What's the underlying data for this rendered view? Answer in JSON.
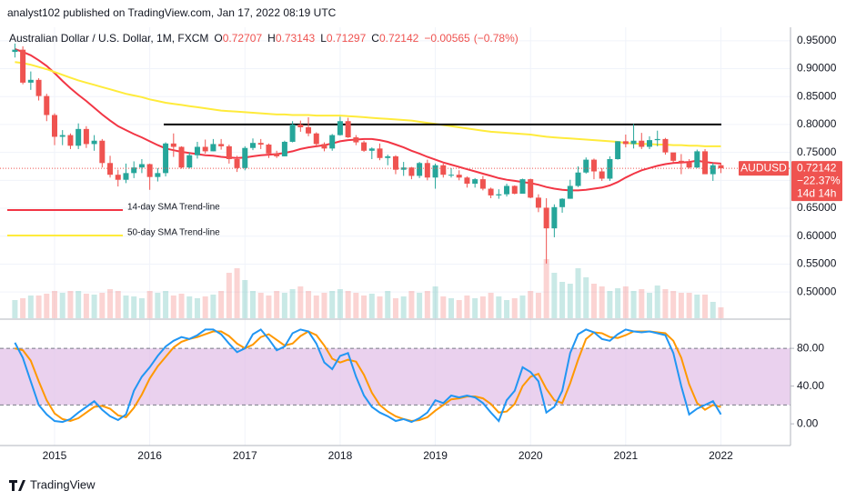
{
  "header": {
    "publisher": "analyst102 published on TradingView.com, Jan 17, 2022 08:19 UTC",
    "logo": "TradingView"
  },
  "chart_data": [
    {
      "type": "candlestick",
      "title": "Australian Dollar / U.S. Dollar, 1M, FXCM",
      "ohlc_legend": [
        {
          "label": "O",
          "value": 0.72707
        },
        {
          "label": "H",
          "value": 0.73143
        },
        {
          "label": "L",
          "value": 0.71297
        },
        {
          "label": "C",
          "value": 0.72142
        }
      ],
      "change": {
        "value": -0.00565,
        "label": "−0.00565"
      },
      "change_percent": {
        "value": -0.78,
        "label": "(−0.78%)"
      },
      "up_color": "#26a69a",
      "down_color": "#ef5350",
      "categories": [
        null,
        null,
        null,
        null,
        null,
        "2015",
        null,
        null,
        null,
        null,
        null,
        null,
        null,
        null,
        null,
        null,
        null,
        "2016",
        null,
        null,
        null,
        null,
        null,
        null,
        null,
        null,
        null,
        null,
        null,
        "2017",
        null,
        null,
        null,
        null,
        null,
        null,
        null,
        null,
        null,
        null,
        null,
        "2018",
        null,
        null,
        null,
        null,
        null,
        null,
        null,
        null,
        null,
        null,
        null,
        "2019",
        null,
        null,
        null,
        null,
        null,
        null,
        null,
        null,
        null,
        null,
        null,
        "2020",
        null,
        null,
        null,
        null,
        null,
        null,
        null,
        null,
        null,
        null,
        null,
        "2021",
        null,
        null,
        null,
        null,
        null,
        null,
        null,
        null,
        null,
        null,
        null,
        "2022"
      ],
      "open": [
        0.93,
        0.934,
        0.875,
        0.88,
        0.851,
        0.817,
        0.778,
        0.781,
        0.762,
        0.792,
        0.765,
        0.771,
        0.731,
        0.71,
        0.701,
        0.713,
        0.723,
        0.729,
        0.706,
        0.713,
        0.766,
        0.76,
        0.723,
        0.745,
        0.76,
        0.752,
        0.765,
        0.761,
        0.738,
        0.722,
        0.758,
        0.767,
        0.764,
        0.748,
        0.743,
        0.769,
        0.8,
        0.795,
        0.784,
        0.765,
        0.757,
        0.781,
        0.806,
        0.777,
        0.768,
        0.753,
        0.757,
        0.74,
        0.743,
        0.719,
        0.723,
        0.708,
        0.731,
        0.705,
        0.727,
        0.71,
        0.71,
        0.705,
        0.694,
        0.702,
        0.685,
        0.673,
        0.675,
        0.69,
        0.676,
        0.702,
        0.669,
        0.651,
        0.614,
        0.652,
        0.667,
        0.69,
        0.714,
        0.737,
        0.716,
        0.703,
        0.738,
        0.77,
        0.765,
        0.771,
        0.76,
        0.772,
        0.774,
        0.75,
        0.735,
        0.732,
        0.723,
        0.752,
        0.711,
        0.72707
      ],
      "high": [
        0.945,
        0.94,
        0.895,
        0.883,
        0.855,
        0.82,
        0.79,
        0.784,
        0.802,
        0.797,
        0.781,
        0.774,
        0.744,
        0.719,
        0.73,
        0.734,
        0.738,
        0.73,
        0.722,
        0.768,
        0.784,
        0.761,
        0.75,
        0.769,
        0.773,
        0.774,
        0.774,
        0.764,
        0.744,
        0.761,
        0.775,
        0.774,
        0.766,
        0.753,
        0.771,
        0.806,
        0.807,
        0.813,
        0.786,
        0.768,
        0.783,
        0.814,
        0.812,
        0.781,
        0.771,
        0.759,
        0.766,
        0.746,
        0.745,
        0.733,
        0.724,
        0.733,
        0.737,
        0.73,
        0.73,
        0.722,
        0.718,
        0.707,
        0.704,
        0.708,
        0.687,
        0.684,
        0.694,
        0.691,
        0.703,
        0.703,
        0.675,
        0.668,
        0.657,
        0.668,
        0.701,
        0.725,
        0.741,
        0.739,
        0.722,
        0.743,
        0.77,
        0.782,
        0.801,
        0.785,
        0.779,
        0.789,
        0.776,
        0.749,
        0.747,
        0.738,
        0.755,
        0.756,
        0.731,
        0.73143
      ],
      "low": [
        0.92,
        0.872,
        0.862,
        0.843,
        0.806,
        0.763,
        0.763,
        0.756,
        0.756,
        0.758,
        0.753,
        0.723,
        0.705,
        0.689,
        0.695,
        0.704,
        0.713,
        0.683,
        0.698,
        0.707,
        0.742,
        0.721,
        0.721,
        0.739,
        0.748,
        0.752,
        0.755,
        0.73,
        0.715,
        0.718,
        0.754,
        0.756,
        0.74,
        0.74,
        0.743,
        0.768,
        0.787,
        0.779,
        0.759,
        0.752,
        0.753,
        0.78,
        0.776,
        0.763,
        0.751,
        0.738,
        0.736,
        0.727,
        0.711,
        0.708,
        0.702,
        0.704,
        0.7,
        0.685,
        0.705,
        0.705,
        0.7,
        0.687,
        0.687,
        0.682,
        0.668,
        0.667,
        0.671,
        0.675,
        0.678,
        0.668,
        0.643,
        0.551,
        0.598,
        0.642,
        0.667,
        0.688,
        0.712,
        0.702,
        0.699,
        0.699,
        0.737,
        0.759,
        0.757,
        0.756,
        0.756,
        0.761,
        0.746,
        0.732,
        0.711,
        0.721,
        0.722,
        0.711,
        0.699,
        0.71297
      ],
      "close": [
        0.934,
        0.875,
        0.88,
        0.851,
        0.817,
        0.778,
        0.781,
        0.762,
        0.792,
        0.765,
        0.771,
        0.731,
        0.71,
        0.701,
        0.713,
        0.723,
        0.729,
        0.706,
        0.713,
        0.766,
        0.76,
        0.723,
        0.745,
        0.76,
        0.752,
        0.765,
        0.761,
        0.738,
        0.722,
        0.758,
        0.767,
        0.764,
        0.748,
        0.743,
        0.769,
        0.8,
        0.795,
        0.784,
        0.765,
        0.757,
        0.781,
        0.806,
        0.777,
        0.768,
        0.753,
        0.757,
        0.74,
        0.743,
        0.719,
        0.723,
        0.708,
        0.731,
        0.705,
        0.727,
        0.71,
        0.71,
        0.705,
        0.694,
        0.702,
        0.685,
        0.673,
        0.675,
        0.69,
        0.676,
        0.702,
        0.669,
        0.651,
        0.614,
        0.652,
        0.667,
        0.69,
        0.714,
        0.737,
        0.716,
        0.703,
        0.738,
        0.77,
        0.765,
        0.771,
        0.76,
        0.772,
        0.774,
        0.75,
        0.735,
        0.732,
        0.723,
        0.752,
        0.711,
        0.727,
        0.72142
      ],
      "volume": [
        20,
        22,
        25,
        25,
        27,
        30,
        28,
        30,
        30,
        27,
        26,
        28,
        32,
        30,
        25,
        24,
        22,
        30,
        28,
        30,
        25,
        27,
        24,
        22,
        24,
        26,
        30,
        50,
        55,
        42,
        30,
        28,
        25,
        30,
        28,
        32,
        35,
        30,
        25,
        28,
        30,
        32,
        30,
        28,
        25,
        27,
        24,
        30,
        22,
        24,
        30,
        28,
        30,
        35,
        24,
        22,
        20,
        25,
        22,
        24,
        28,
        24,
        20,
        22,
        25,
        30,
        28,
        65,
        50,
        40,
        38,
        55,
        45,
        38,
        35,
        30,
        33,
        35,
        30,
        32,
        28,
        36,
        32,
        30,
        28,
        28,
        26,
        26,
        18,
        12
      ],
      "series": [
        {
          "name": "14-day SMA Trend-line",
          "color": "#f23645",
          "values": [
            0.935,
            0.93,
            0.924,
            0.915,
            0.905,
            0.892,
            0.878,
            0.865,
            0.853,
            0.842,
            0.83,
            0.818,
            0.807,
            0.797,
            0.79,
            0.783,
            0.777,
            0.77,
            0.763,
            0.757,
            0.754,
            0.751,
            0.749,
            0.747,
            0.745,
            0.744,
            0.742,
            0.741,
            0.74,
            0.741,
            0.743,
            0.745,
            0.746,
            0.747,
            0.749,
            0.752,
            0.756,
            0.759,
            0.761,
            0.763,
            0.766,
            0.77,
            0.772,
            0.773,
            0.774,
            0.774,
            0.772,
            0.769,
            0.764,
            0.759,
            0.753,
            0.748,
            0.742,
            0.737,
            0.732,
            0.728,
            0.724,
            0.72,
            0.716,
            0.712,
            0.708,
            0.704,
            0.701,
            0.699,
            0.697,
            0.695,
            0.692,
            0.688,
            0.685,
            0.683,
            0.682,
            0.682,
            0.683,
            0.685,
            0.687,
            0.691,
            0.697,
            0.705,
            0.712,
            0.718,
            0.722,
            0.726,
            0.729,
            0.731,
            0.732,
            0.733,
            0.735,
            0.733,
            0.731,
            0.73
          ]
        },
        {
          "name": "50-day SMA Trend-line",
          "color": "#ffeb3b",
          "values": [
            0.912,
            0.91,
            0.907,
            0.903,
            0.899,
            0.894,
            0.889,
            0.884,
            0.879,
            0.875,
            0.871,
            0.867,
            0.863,
            0.859,
            0.855,
            0.852,
            0.849,
            0.845,
            0.842,
            0.839,
            0.837,
            0.835,
            0.833,
            0.831,
            0.829,
            0.827,
            0.825,
            0.824,
            0.823,
            0.822,
            0.821,
            0.82,
            0.819,
            0.818,
            0.818,
            0.817,
            0.817,
            0.817,
            0.816,
            0.816,
            0.816,
            0.816,
            0.815,
            0.814,
            0.813,
            0.812,
            0.811,
            0.81,
            0.809,
            0.808,
            0.807,
            0.805,
            0.803,
            0.801,
            0.799,
            0.797,
            0.795,
            0.793,
            0.791,
            0.789,
            0.787,
            0.786,
            0.785,
            0.784,
            0.783,
            0.782,
            0.78,
            0.778,
            0.777,
            0.776,
            0.775,
            0.774,
            0.773,
            0.772,
            0.771,
            0.77,
            0.769,
            0.767,
            0.766,
            0.765,
            0.765,
            0.764,
            0.764,
            0.763,
            0.763,
            0.762,
            0.762,
            0.761,
            0.761,
            0.761
          ]
        }
      ],
      "hline": {
        "value": 0.8,
        "color": "#000000"
      },
      "price_tag": {
        "symbol": "AUDUSD",
        "price": 0.72142,
        "change": {
          "value": -22.37,
          "label": "−22.37%"
        },
        "countdown": "14d 14h"
      },
      "ylim": [
        0.453,
        0.966
      ],
      "yticks": [
        {
          "value": 0.95,
          "label": "0.95000"
        },
        {
          "value": 0.9,
          "label": "0.90000"
        },
        {
          "value": 0.85,
          "label": "0.85000"
        },
        {
          "value": 0.8,
          "label": "0.80000"
        },
        {
          "value": 0.75,
          "label": "0.75000"
        },
        {
          "value": 0.7,
          "label": "0.70000"
        },
        {
          "value": 0.65,
          "label": "0.65000"
        },
        {
          "value": 0.6,
          "label": "0.60000"
        },
        {
          "value": 0.55,
          "label": "0.55000"
        },
        {
          "value": 0.5,
          "label": "0.50000"
        }
      ],
      "grid": true
    },
    {
      "type": "line",
      "band": [
        20,
        80
      ],
      "band_color": "#e1bee7",
      "series": [
        {
          "color": "#2196f3",
          "values": [
            86,
            70,
            45,
            20,
            10,
            3,
            2,
            5,
            12,
            18,
            24,
            15,
            8,
            4,
            10,
            35,
            50,
            60,
            72,
            82,
            88,
            92,
            90,
            94,
            100,
            100,
            95,
            85,
            76,
            80,
            95,
            100,
            90,
            78,
            82,
            96,
            100,
            98,
            85,
            65,
            58,
            72,
            75,
            50,
            30,
            18,
            12,
            8,
            3,
            5,
            2,
            6,
            12,
            25,
            22,
            30,
            28,
            30,
            28,
            22,
            12,
            3,
            25,
            35,
            60,
            55,
            45,
            12,
            18,
            35,
            75,
            95,
            100,
            97,
            90,
            88,
            95,
            100,
            98,
            97,
            98,
            96,
            94,
            75,
            40,
            10,
            16,
            20,
            24,
            10
          ]
        },
        {
          "color": "#ff9800",
          "values": [
            80,
            78,
            67,
            45,
            25,
            11,
            5,
            3,
            6,
            12,
            18,
            19,
            16,
            9,
            7,
            17,
            31,
            48,
            61,
            71,
            81,
            87,
            90,
            92,
            95,
            98,
            98,
            93,
            85,
            80,
            84,
            92,
            95,
            89,
            83,
            85,
            93,
            98,
            94,
            83,
            69,
            65,
            68,
            66,
            52,
            33,
            20,
            13,
            8,
            5,
            3,
            4,
            7,
            14,
            20,
            26,
            27,
            29,
            29,
            27,
            21,
            12,
            13,
            21,
            40,
            50,
            53,
            37,
            25,
            22,
            43,
            68,
            90,
            97,
            96,
            92,
            91,
            94,
            98,
            98,
            98,
            97,
            96,
            88,
            70,
            42,
            22,
            15,
            20,
            18
          ]
        }
      ],
      "ylim": [
        -23,
        110
      ],
      "yticks": [
        {
          "value": 80,
          "label": "80.00"
        },
        {
          "value": 40,
          "label": "40.00"
        },
        {
          "value": 0,
          "label": "0.00"
        }
      ]
    }
  ]
}
